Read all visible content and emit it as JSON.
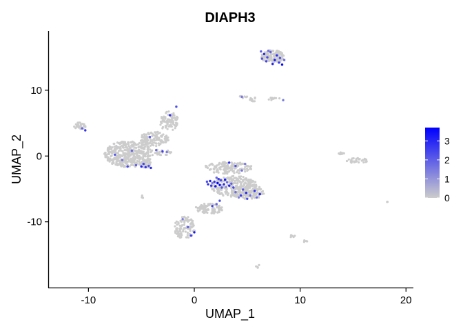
{
  "chart_data": {
    "type": "scatter",
    "title": "DIAPH3",
    "xlabel": "UMAP_1",
    "ylabel": "UMAP_2",
    "xlim": [
      -13.8,
      20.7
    ],
    "ylim": [
      -20.1,
      19.0
    ],
    "x_ticks": [
      -10,
      0,
      10,
      20
    ],
    "x_tick_labels": [
      "-10",
      "0",
      "10",
      "20"
    ],
    "y_ticks": [
      -10,
      0,
      10
    ],
    "y_tick_labels": [
      "-10",
      "0",
      "10"
    ],
    "grid": false,
    "legend": {
      "position": "right",
      "min": 0,
      "max": 3.7,
      "breaks": [
        0,
        1,
        2,
        3
      ],
      "labels": [
        "0",
        "1",
        "2",
        "3"
      ],
      "low_color": "#cccccc",
      "high_color": "#0000ff"
    },
    "clusters": [
      {
        "cx": -6.2,
        "cy": 0.3,
        "rx": 2.3,
        "ry": 2.0,
        "n": 420
      },
      {
        "cx": -3.8,
        "cy": 2.6,
        "rx": 1.4,
        "ry": 1.1,
        "n": 130
      },
      {
        "cx": -2.4,
        "cy": 5.3,
        "rx": 0.9,
        "ry": 1.5,
        "n": 90
      },
      {
        "cx": -10.8,
        "cy": 4.6,
        "rx": 0.6,
        "ry": 0.5,
        "n": 30
      },
      {
        "cx": -4.6,
        "cy": -1.3,
        "rx": 0.7,
        "ry": 0.5,
        "n": 35
      },
      {
        "cx": -3.0,
        "cy": 0.6,
        "rx": 0.9,
        "ry": 0.5,
        "n": 25
      },
      {
        "cx": 3.2,
        "cy": -1.8,
        "rx": 2.3,
        "ry": 0.9,
        "n": 150
      },
      {
        "cx": 3.8,
        "cy": -4.6,
        "rx": 2.2,
        "ry": 1.6,
        "n": 260
      },
      {
        "cx": 5.1,
        "cy": -5.5,
        "rx": 1.5,
        "ry": 1.1,
        "n": 110
      },
      {
        "cx": 1.4,
        "cy": -8.0,
        "rx": 1.3,
        "ry": 0.8,
        "n": 90
      },
      {
        "cx": -0.9,
        "cy": -10.9,
        "rx": 1.0,
        "ry": 1.7,
        "n": 110
      },
      {
        "cx": 7.4,
        "cy": 15.1,
        "rx": 1.1,
        "ry": 1.0,
        "n": 140
      },
      {
        "cx": 7.5,
        "cy": 8.7,
        "rx": 0.6,
        "ry": 0.2,
        "n": 12
      },
      {
        "cx": 5.6,
        "cy": 8.6,
        "rx": 0.4,
        "ry": 0.3,
        "n": 10
      },
      {
        "cx": 4.6,
        "cy": 9.0,
        "rx": 0.5,
        "ry": 0.2,
        "n": 8
      },
      {
        "cx": 15.4,
        "cy": -0.7,
        "rx": 1.0,
        "ry": 0.4,
        "n": 30
      },
      {
        "cx": 13.9,
        "cy": 0.4,
        "rx": 0.3,
        "ry": 0.15,
        "n": 8
      },
      {
        "cx": 9.3,
        "cy": -12.2,
        "rx": 0.3,
        "ry": 0.2,
        "n": 6
      },
      {
        "cx": 10.4,
        "cy": -12.9,
        "rx": 0.3,
        "ry": 0.2,
        "n": 4
      },
      {
        "cx": 6.0,
        "cy": -16.8,
        "rx": 0.3,
        "ry": 0.3,
        "n": 5
      },
      {
        "cx": -4.9,
        "cy": -6.2,
        "rx": 0.2,
        "ry": 0.2,
        "n": 4
      },
      {
        "cx": 18.2,
        "cy": -7.0,
        "rx": 0.1,
        "ry": 0.1,
        "n": 2
      }
    ],
    "expressing_points": [
      [
        1.5,
        -3.8,
        3.2
      ],
      [
        1.9,
        -3.9,
        2.8
      ],
      [
        2.2,
        -4.1,
        3.6
      ],
      [
        2.5,
        -3.7,
        2.4
      ],
      [
        2.8,
        -4.3,
        3.0
      ],
      [
        3.1,
        -4.0,
        1.8
      ],
      [
        1.3,
        -4.3,
        2.9
      ],
      [
        2.0,
        -4.6,
        3.4
      ],
      [
        2.6,
        -4.8,
        2.2
      ],
      [
        3.3,
        -4.5,
        3.1
      ],
      [
        1.7,
        -4.1,
        1.5
      ],
      [
        2.3,
        -3.5,
        2.6
      ],
      [
        2.9,
        -3.6,
        3.3
      ],
      [
        3.5,
        -4.2,
        2.0
      ],
      [
        1.6,
        -4.5,
        2.7
      ],
      [
        2.4,
        -4.4,
        3.5
      ],
      [
        3.0,
        -4.7,
        1.2
      ],
      [
        1.2,
        -3.9,
        2.3
      ],
      [
        3.7,
        -4.8,
        2.5
      ],
      [
        2.1,
        -3.3,
        1.9
      ],
      [
        4.6,
        -5.1,
        2.1
      ],
      [
        4.9,
        -5.6,
        3.0
      ],
      [
        5.3,
        -6.0,
        1.6
      ],
      [
        5.7,
        -5.3,
        2.8
      ],
      [
        4.2,
        -6.3,
        1.4
      ],
      [
        5.0,
        -6.5,
        2.4
      ],
      [
        5.9,
        -6.3,
        1.8
      ],
      [
        6.2,
        -5.8,
        3.1
      ],
      [
        3.9,
        -5.5,
        1.7
      ],
      [
        4.4,
        -6.0,
        2.6
      ],
      [
        3.9,
        -1.5,
        2.2
      ],
      [
        4.5,
        -2.2,
        1.6
      ],
      [
        3.3,
        -1.0,
        2.9
      ],
      [
        4.8,
        -1.2,
        1.5
      ],
      [
        2.4,
        -6.8,
        2.3
      ],
      [
        2.1,
        -7.3,
        1.9
      ],
      [
        1.7,
        -7.6,
        2.6
      ],
      [
        0.0,
        -11.6,
        3.3
      ],
      [
        -0.6,
        -10.8,
        2.0
      ],
      [
        -1.1,
        -9.6,
        1.4
      ],
      [
        -0.3,
        -12.1,
        2.5
      ],
      [
        6.6,
        15.5,
        3.0
      ],
      [
        6.9,
        15.0,
        2.4
      ],
      [
        7.2,
        15.8,
        1.9
      ],
      [
        7.6,
        14.6,
        3.3
      ],
      [
        8.0,
        14.2,
        2.7
      ],
      [
        8.3,
        13.9,
        3.6
      ],
      [
        6.4,
        14.8,
        2.2
      ],
      [
        7.0,
        16.0,
        1.6
      ],
      [
        7.8,
        15.3,
        2.9
      ],
      [
        8.5,
        14.6,
        1.8
      ],
      [
        6.8,
        14.4,
        2.5
      ],
      [
        7.4,
        14.0,
        3.1
      ],
      [
        6.3,
        15.9,
        2.0
      ],
      [
        8.1,
        14.9,
        2.3
      ],
      [
        -5.0,
        -1.6,
        3.2
      ],
      [
        -4.6,
        -1.7,
        2.7
      ],
      [
        -4.3,
        -1.5,
        2.2
      ],
      [
        -5.5,
        -1.4,
        1.9
      ],
      [
        -4.1,
        -1.8,
        3.0
      ],
      [
        -4.8,
        -1.2,
        2.5
      ],
      [
        -3.6,
        0.9,
        1.8
      ],
      [
        -3.0,
        0.7,
        2.6
      ],
      [
        -2.6,
        0.6,
        1.5
      ],
      [
        -4.2,
        2.9,
        2.0
      ],
      [
        -2.3,
        6.2,
        2.7
      ],
      [
        -1.7,
        7.5,
        2.3
      ],
      [
        -10.3,
        3.9,
        2.8
      ],
      [
        -10.6,
        4.2,
        1.9
      ],
      [
        -6.8,
        -0.6,
        1.6
      ],
      [
        -7.5,
        0.2,
        2.2
      ],
      [
        -5.9,
        0.8,
        1.8
      ],
      [
        -6.3,
        -1.6,
        2.4
      ],
      [
        4.5,
        9.0,
        1.6
      ],
      [
        8.4,
        8.5,
        1.5
      ]
    ]
  }
}
